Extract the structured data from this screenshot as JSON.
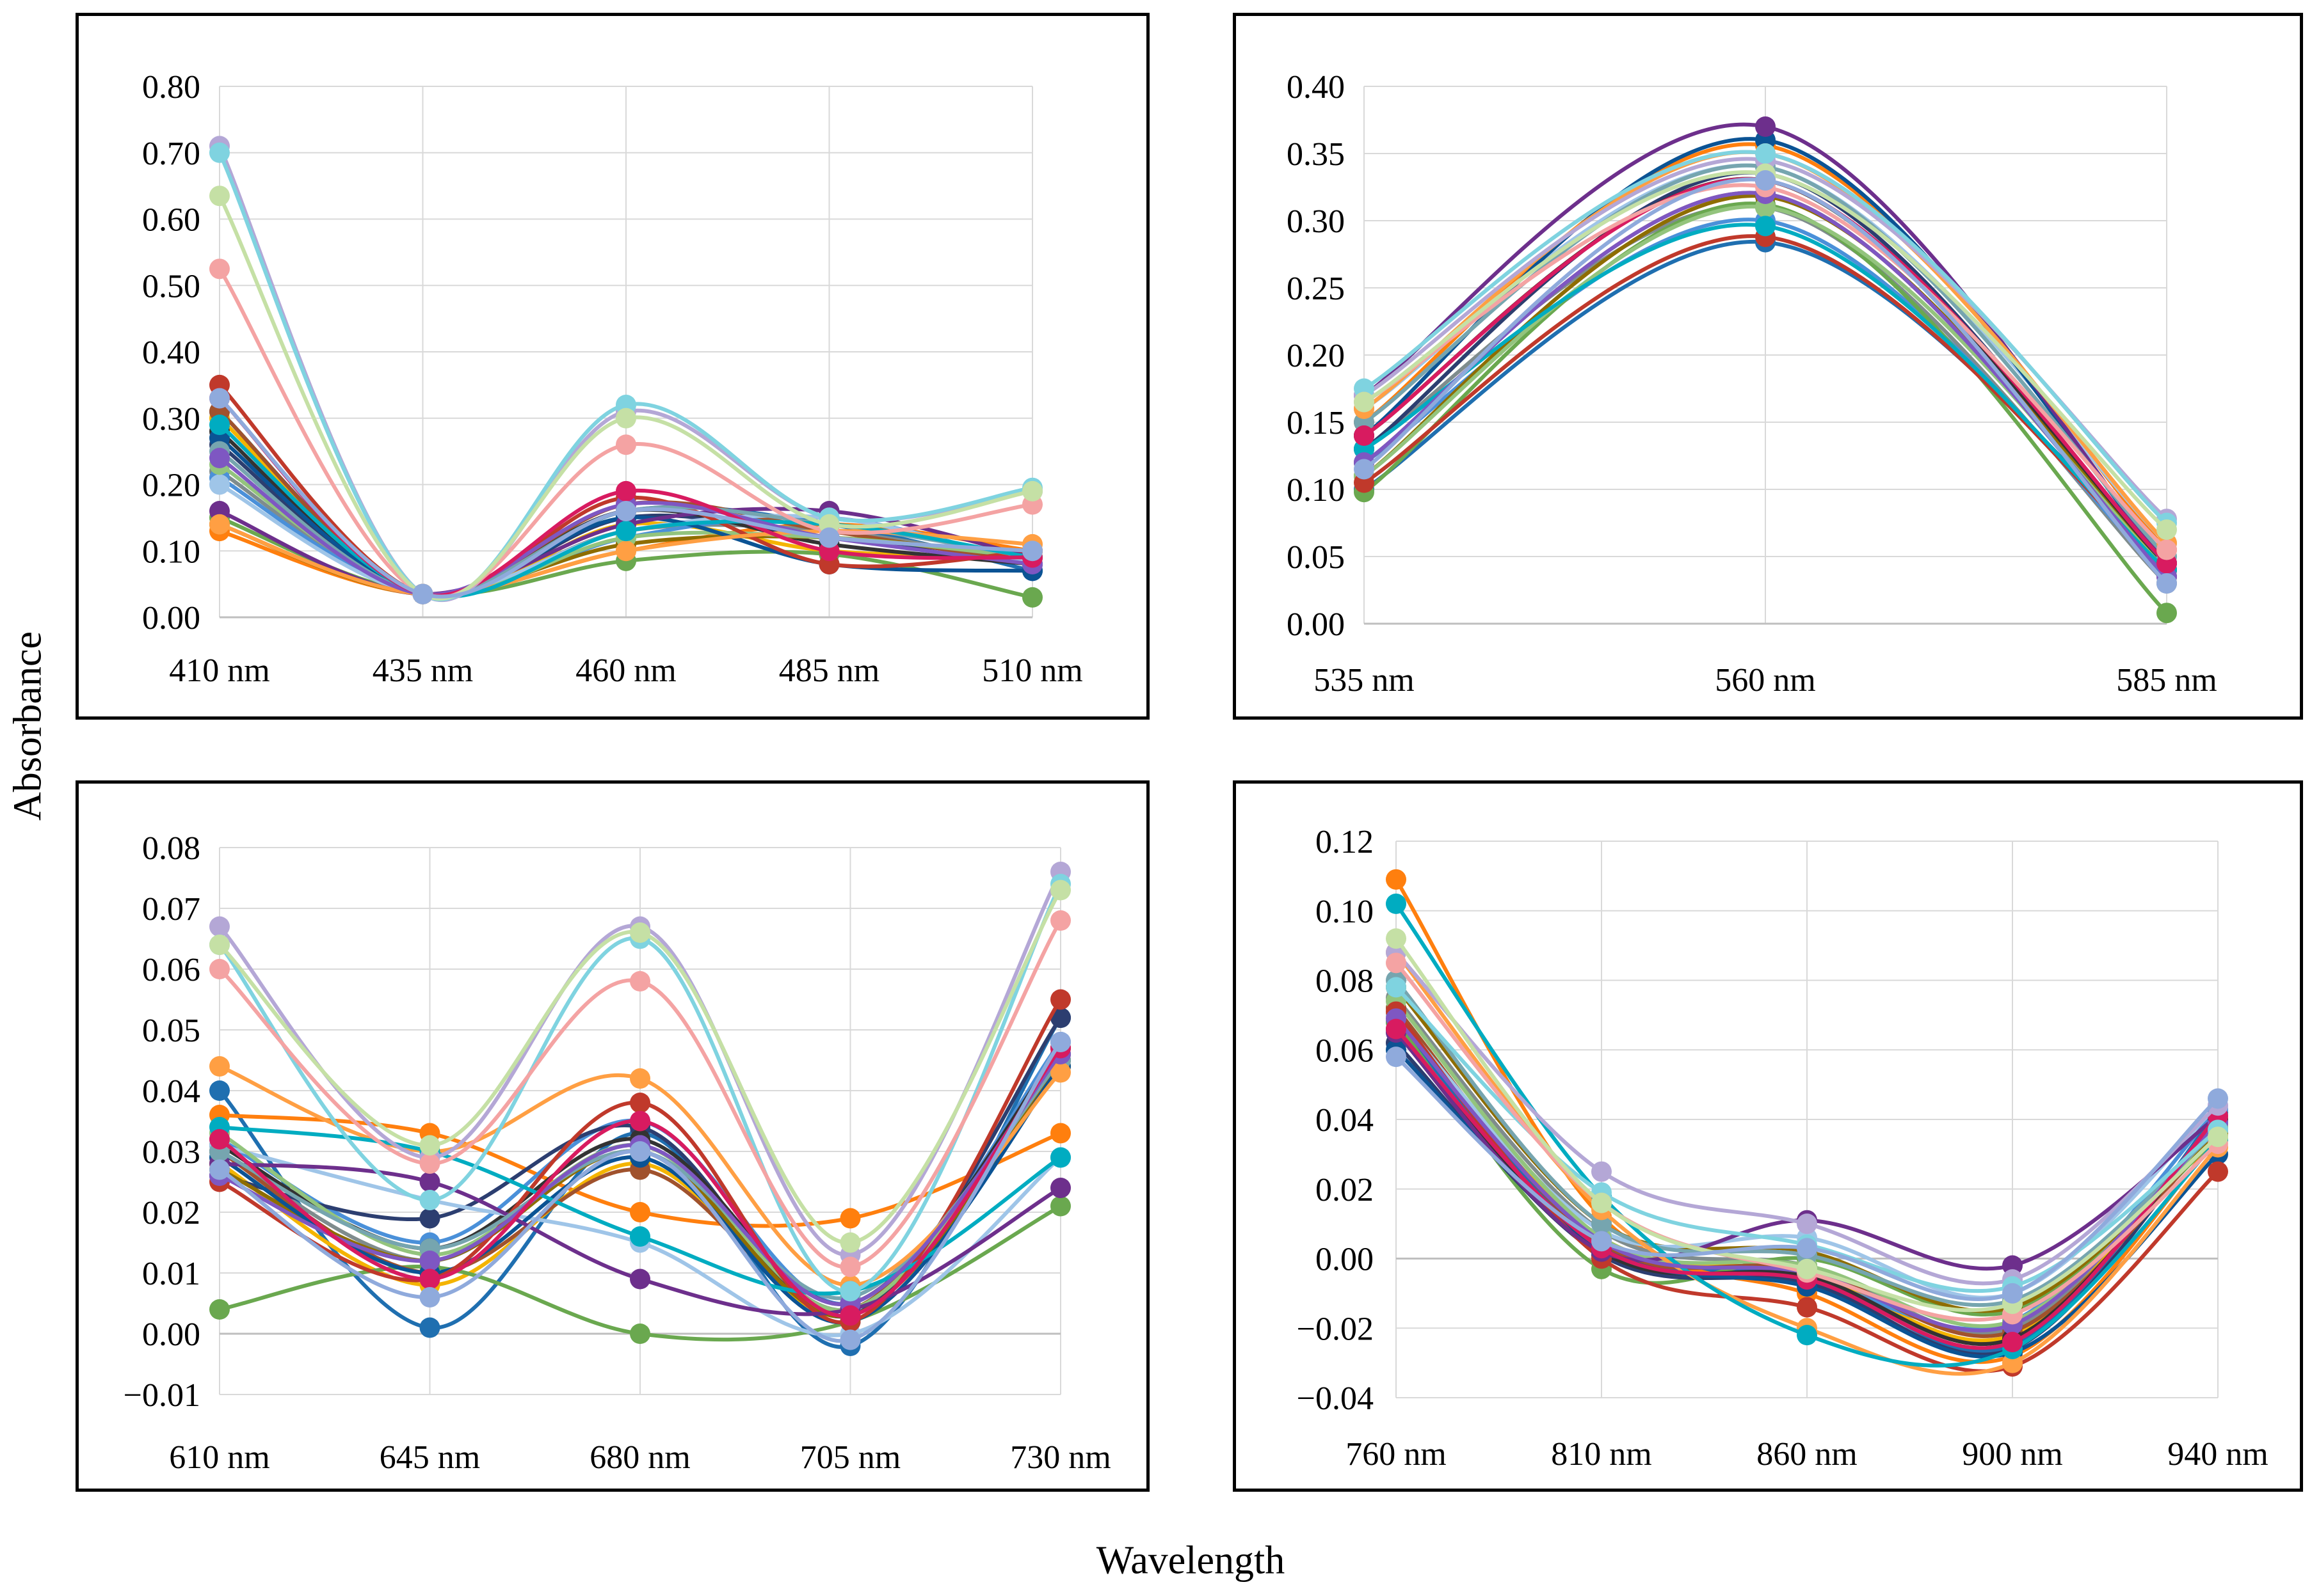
{
  "figure": {
    "ylabel": "Absorbance",
    "xlabel": "Wavelength"
  },
  "palette": [
    "#1f6fb0",
    "#ff7f0e",
    "#7f8c8d",
    "#f4b400",
    "#4a90d9",
    "#6aa84f",
    "#2c3e70",
    "#a0522d",
    "#333333",
    "#8e6d00",
    "#9fc5e8",
    "#93c47d",
    "#0b5394",
    "#c0392b",
    "#6d2f8c",
    "#76a5af",
    "#ff9f43",
    "#00acc1",
    "#7e57c2",
    "#d81b60",
    "#b4a7d6",
    "#7fd3e0",
    "#f4a3a3",
    "#c5e0a5",
    "#8faadc"
  ],
  "chart_data": [
    {
      "type": "line",
      "categories": [
        "410 nm",
        "435 nm",
        "460 nm",
        "485 nm",
        "510 nm"
      ],
      "ylim": [
        0,
        0.8
      ],
      "yticks": [
        "0.00",
        "0.10",
        "0.20",
        "0.30",
        "0.40",
        "0.50",
        "0.60",
        "0.70",
        "0.80"
      ],
      "ystep": 0.1,
      "grid": true,
      "series": [
        {
          "values": [
            0.31,
            0.035,
            0.16,
            0.14,
            0.07
          ]
        },
        {
          "values": [
            0.13,
            0.035,
            0.1,
            0.14,
            0.1
          ]
        },
        {
          "values": [
            0.22,
            0.035,
            0.13,
            0.13,
            0.08
          ]
        },
        {
          "values": [
            0.3,
            0.035,
            0.14,
            0.1,
            0.09
          ]
        },
        {
          "values": [
            0.21,
            0.035,
            0.12,
            0.15,
            0.08
          ]
        },
        {
          "values": [
            0.15,
            0.035,
            0.085,
            0.095,
            0.03
          ]
        },
        {
          "values": [
            0.26,
            0.035,
            0.15,
            0.12,
            0.09
          ]
        },
        {
          "values": [
            0.31,
            0.035,
            0.17,
            0.13,
            0.08
          ]
        },
        {
          "values": [
            0.28,
            0.035,
            0.16,
            0.11,
            0.08
          ]
        },
        {
          "values": [
            0.14,
            0.035,
            0.11,
            0.12,
            0.09
          ]
        },
        {
          "values": [
            0.2,
            0.035,
            0.13,
            0.15,
            0.08
          ]
        },
        {
          "values": [
            0.23,
            0.035,
            0.12,
            0.12,
            0.09
          ]
        },
        {
          "values": [
            0.27,
            0.035,
            0.15,
            0.08,
            0.07
          ]
        },
        {
          "values": [
            0.35,
            0.035,
            0.18,
            0.08,
            0.1
          ]
        },
        {
          "values": [
            0.16,
            0.035,
            0.14,
            0.16,
            0.09
          ]
        },
        {
          "values": [
            0.25,
            0.035,
            0.16,
            0.14,
            0.09
          ]
        },
        {
          "values": [
            0.14,
            0.035,
            0.1,
            0.13,
            0.11
          ]
        },
        {
          "values": [
            0.29,
            0.035,
            0.13,
            0.14,
            0.09
          ]
        },
        {
          "values": [
            0.24,
            0.035,
            0.17,
            0.12,
            0.08
          ]
        },
        {
          "values": [
            0.33,
            0.035,
            0.19,
            0.1,
            0.09
          ]
        },
        {
          "values": [
            0.71,
            0.035,
            0.31,
            0.15,
            0.19
          ]
        },
        {
          "values": [
            0.7,
            0.035,
            0.32,
            0.15,
            0.195
          ]
        },
        {
          "values": [
            0.525,
            0.035,
            0.26,
            0.13,
            0.17
          ]
        },
        {
          "values": [
            0.635,
            0.035,
            0.3,
            0.14,
            0.19
          ]
        },
        {
          "values": [
            0.33,
            0.035,
            0.16,
            0.12,
            0.1
          ]
        }
      ]
    },
    {
      "type": "line",
      "categories": [
        "535 nm",
        "560 nm",
        "585 nm"
      ],
      "ylim": [
        0,
        0.4
      ],
      "yticks": [
        "0.00",
        "0.05",
        "0.10",
        "0.15",
        "0.20",
        "0.25",
        "0.30",
        "0.35",
        "0.40"
      ],
      "ystep": 0.05,
      "grid": true,
      "series": [
        {
          "values": [
            0.1,
            0.284,
            0.045
          ]
        },
        {
          "values": [
            0.15,
            0.356,
            0.055
          ]
        },
        {
          "values": [
            0.13,
            0.31,
            0.03
          ]
        },
        {
          "values": [
            0.14,
            0.33,
            0.04
          ]
        },
        {
          "values": [
            0.12,
            0.3,
            0.035
          ]
        },
        {
          "values": [
            0.098,
            0.312,
            0.008
          ]
        },
        {
          "values": [
            0.13,
            0.335,
            0.04
          ]
        },
        {
          "values": [
            0.12,
            0.32,
            0.035
          ]
        },
        {
          "values": [
            0.14,
            0.33,
            0.04
          ]
        },
        {
          "values": [
            0.11,
            0.318,
            0.04
          ]
        },
        {
          "values": [
            0.16,
            0.34,
            0.06
          ]
        },
        {
          "values": [
            0.11,
            0.31,
            0.04
          ]
        },
        {
          "values": [
            0.14,
            0.36,
            0.045
          ]
        },
        {
          "values": [
            0.105,
            0.288,
            0.04
          ]
        },
        {
          "values": [
            0.17,
            0.37,
            0.045
          ]
        },
        {
          "values": [
            0.15,
            0.34,
            0.05
          ]
        },
        {
          "values": [
            0.16,
            0.35,
            0.06
          ]
        },
        {
          "values": [
            0.13,
            0.296,
            0.04
          ]
        },
        {
          "values": [
            0.12,
            0.32,
            0.035
          ]
        },
        {
          "values": [
            0.14,
            0.33,
            0.045
          ]
        },
        {
          "values": [
            0.17,
            0.345,
            0.078
          ]
        },
        {
          "values": [
            0.175,
            0.35,
            0.075
          ]
        },
        {
          "values": [
            0.165,
            0.325,
            0.055
          ]
        },
        {
          "values": [
            0.165,
            0.335,
            0.07
          ]
        },
        {
          "values": [
            0.115,
            0.33,
            0.03
          ]
        }
      ]
    },
    {
      "type": "line",
      "categories": [
        "610 nm",
        "645 nm",
        "680 nm",
        "705 nm",
        "730 nm"
      ],
      "ylim": [
        -0.01,
        0.08
      ],
      "yticks": [
        "−0.01",
        "0.00",
        "0.01",
        "0.02",
        "0.03",
        "0.04",
        "0.05",
        "0.06",
        "0.07",
        "0.08"
      ],
      "ystep": 0.01,
      "grid": true,
      "series": [
        {
          "values": [
            0.04,
            0.001,
            0.033,
            -0.002,
            0.052
          ]
        },
        {
          "values": [
            0.036,
            0.033,
            0.02,
            0.019,
            0.033
          ]
        },
        {
          "values": [
            0.03,
            0.012,
            0.031,
            0.004,
            0.045
          ]
        },
        {
          "values": [
            0.028,
            0.008,
            0.028,
            0.003,
            0.044
          ]
        },
        {
          "values": [
            0.032,
            0.015,
            0.035,
            0.005,
            0.048
          ]
        },
        {
          "values": [
            0.004,
            0.011,
            0.0,
            0.002,
            0.021
          ]
        },
        {
          "values": [
            0.026,
            0.019,
            0.034,
            0.003,
            0.052
          ]
        },
        {
          "values": [
            0.03,
            0.01,
            0.027,
            0.004,
            0.046
          ]
        },
        {
          "values": [
            0.031,
            0.014,
            0.032,
            0.005,
            0.047
          ]
        },
        {
          "values": [
            0.027,
            0.012,
            0.03,
            0.003,
            0.045
          ]
        },
        {
          "values": [
            0.031,
            0.022,
            0.015,
            0.0,
            0.029
          ]
        },
        {
          "values": [
            0.033,
            0.013,
            0.031,
            0.004,
            0.046
          ]
        },
        {
          "values": [
            0.029,
            0.01,
            0.029,
            0.002,
            0.044
          ]
        },
        {
          "values": [
            0.025,
            0.009,
            0.038,
            0.002,
            0.055
          ]
        },
        {
          "values": [
            0.028,
            0.025,
            0.009,
            0.004,
            0.024
          ]
        },
        {
          "values": [
            0.03,
            0.014,
            0.03,
            0.006,
            0.045
          ]
        },
        {
          "values": [
            0.044,
            0.03,
            0.042,
            0.008,
            0.043
          ]
        },
        {
          "values": [
            0.034,
            0.03,
            0.016,
            0.007,
            0.029
          ]
        },
        {
          "values": [
            0.026,
            0.012,
            0.031,
            0.005,
            0.046
          ]
        },
        {
          "values": [
            0.032,
            0.009,
            0.035,
            0.003,
            0.047
          ]
        },
        {
          "values": [
            0.067,
            0.029,
            0.067,
            0.013,
            0.076
          ]
        },
        {
          "values": [
            0.064,
            0.022,
            0.065,
            0.007,
            0.074
          ]
        },
        {
          "values": [
            0.06,
            0.028,
            0.058,
            0.011,
            0.068
          ]
        },
        {
          "values": [
            0.064,
            0.031,
            0.066,
            0.015,
            0.073
          ]
        },
        {
          "values": [
            0.027,
            0.006,
            0.03,
            -0.001,
            0.048
          ]
        }
      ]
    },
    {
      "type": "line",
      "categories": [
        "760 nm",
        "810 nm",
        "860 nm",
        "900 nm",
        "940 nm"
      ],
      "ylim": [
        -0.04,
        0.12
      ],
      "yticks": [
        "−0.04",
        "−0.02",
        "0.00",
        "0.02",
        "0.04",
        "0.06",
        "0.08",
        "0.10",
        "0.12"
      ],
      "ystep": 0.02,
      "grid": true,
      "series": [
        {
          "values": [
            0.068,
            0.004,
            -0.005,
            -0.025,
            0.042
          ]
        },
        {
          "values": [
            0.109,
            0.012,
            -0.01,
            -0.028,
            0.035
          ]
        },
        {
          "values": [
            0.075,
            0.008,
            -0.002,
            -0.02,
            0.038
          ]
        },
        {
          "values": [
            0.07,
            0.006,
            -0.004,
            -0.022,
            0.04
          ]
        },
        {
          "values": [
            0.065,
            0.002,
            -0.006,
            -0.018,
            0.043
          ]
        },
        {
          "values": [
            0.068,
            -0.003,
            0.0,
            -0.015,
            0.035
          ]
        },
        {
          "values": [
            0.062,
            0.001,
            -0.007,
            -0.026,
            0.039
          ]
        },
        {
          "values": [
            0.072,
            0.004,
            -0.003,
            -0.021,
            0.037
          ]
        },
        {
          "values": [
            0.066,
            0.002,
            -0.005,
            -0.023,
            0.04
          ]
        },
        {
          "values": [
            0.078,
            0.01,
            0.002,
            -0.014,
            0.036
          ]
        },
        {
          "values": [
            0.07,
            0.008,
            0.006,
            -0.01,
            0.044
          ]
        },
        {
          "values": [
            0.074,
            0.006,
            -0.002,
            -0.018,
            0.038
          ]
        },
        {
          "values": [
            0.06,
            0.003,
            -0.008,
            -0.027,
            0.03
          ]
        },
        {
          "values": [
            0.071,
            0.0,
            -0.014,
            -0.031,
            0.025
          ]
        },
        {
          "values": [
            0.065,
            0.002,
            0.011,
            -0.002,
            0.041
          ]
        },
        {
          "values": [
            0.08,
            0.01,
            0.001,
            -0.012,
            0.037
          ]
        },
        {
          "values": [
            0.088,
            0.014,
            -0.02,
            -0.03,
            0.032
          ]
        },
        {
          "values": [
            0.102,
            0.018,
            -0.022,
            -0.026,
            0.034
          ]
        },
        {
          "values": [
            0.069,
            0.005,
            -0.004,
            -0.019,
            0.039
          ]
        },
        {
          "values": [
            0.066,
            0.003,
            -0.006,
            -0.024,
            0.041
          ]
        },
        {
          "values": [
            0.088,
            0.025,
            0.01,
            -0.006,
            0.044
          ]
        },
        {
          "values": [
            0.078,
            0.019,
            0.004,
            -0.008,
            0.037
          ]
        },
        {
          "values": [
            0.085,
            0.016,
            -0.004,
            -0.016,
            0.033
          ]
        },
        {
          "values": [
            0.092,
            0.016,
            -0.003,
            -0.013,
            0.035
          ]
        },
        {
          "values": [
            0.058,
            0.005,
            0.003,
            -0.01,
            0.046
          ]
        }
      ]
    }
  ]
}
